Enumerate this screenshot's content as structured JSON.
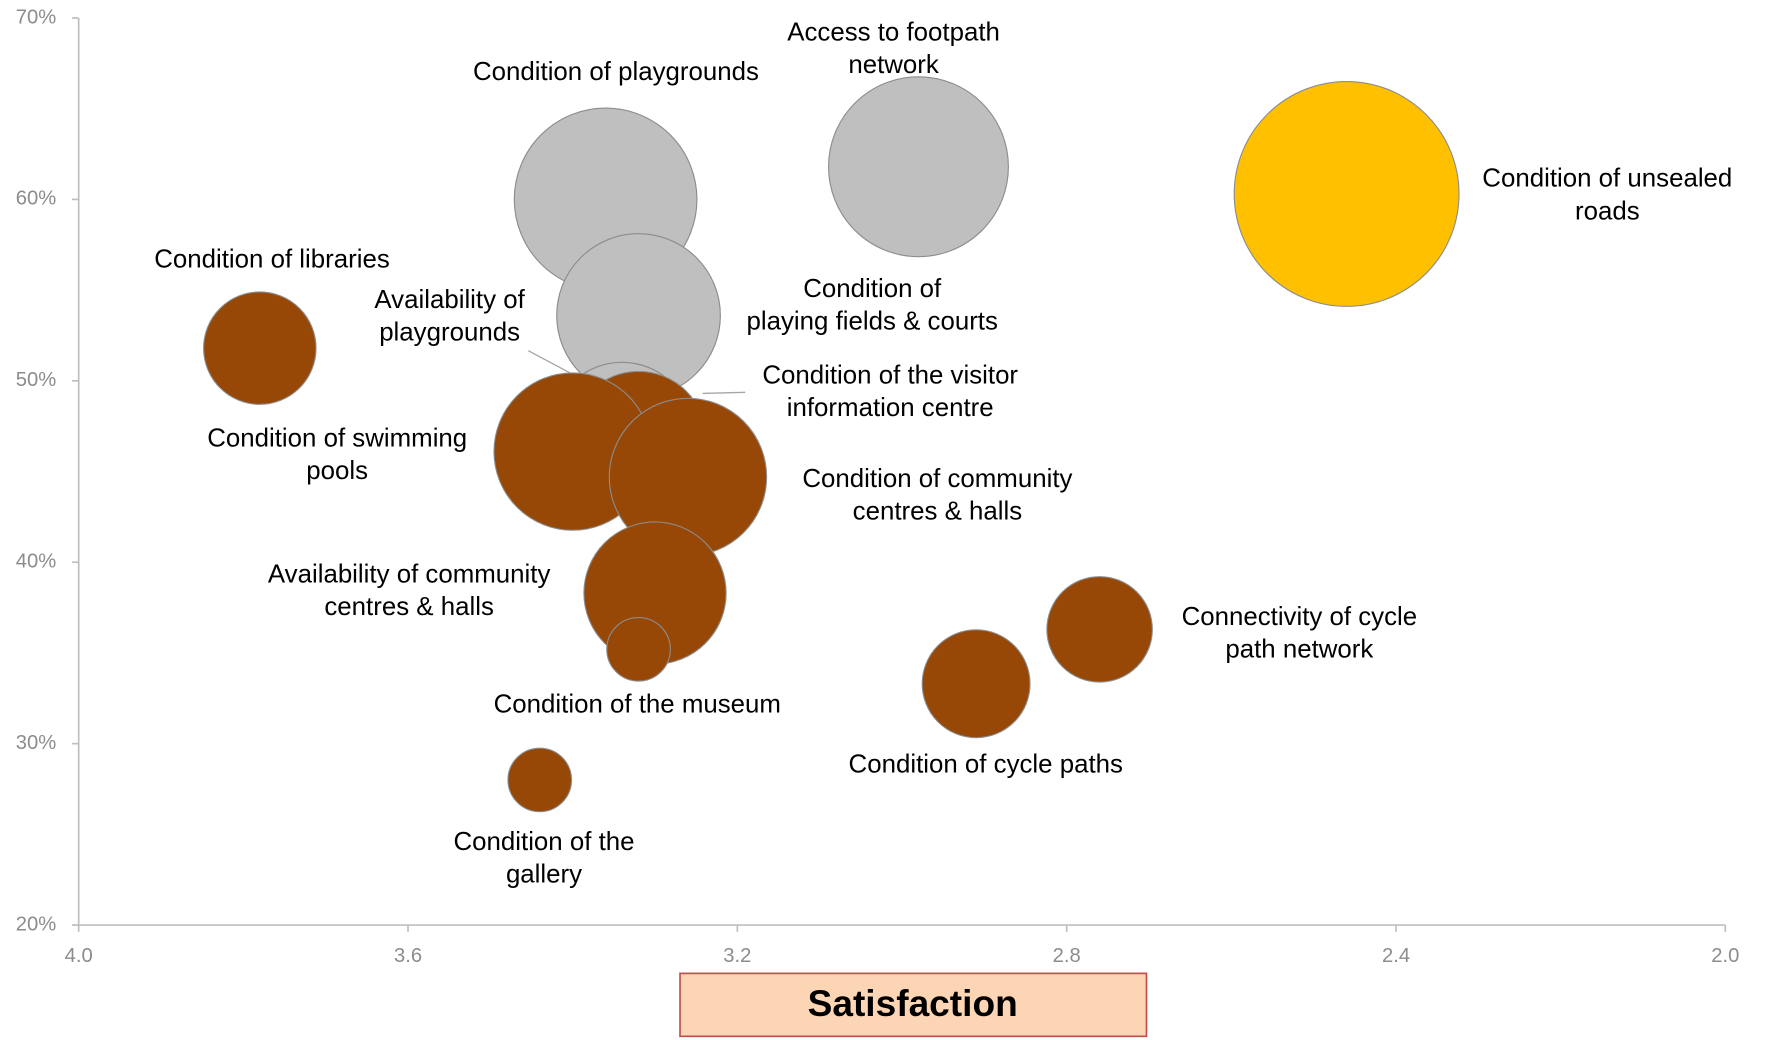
{
  "chart_data": {
    "type": "bubble",
    "xlabel": "Satisfaction",
    "xlim": [
      4,
      2
    ],
    "xticks": [
      {
        "value": 4,
        "label": "4.0"
      },
      3.6,
      3.2,
      2.8,
      2.4,
      {
        "value": 2,
        "label": "2.0"
      }
    ],
    "ylim": [
      20,
      70
    ],
    "yticks": [
      {
        "value": 20,
        "label": "20%"
      },
      {
        "value": 30,
        "label": "30%"
      },
      {
        "value": 40,
        "label": "40%"
      },
      {
        "value": 50,
        "label": "50%"
      },
      {
        "value": 60,
        "label": "60%"
      },
      {
        "value": 70,
        "label": "70%"
      }
    ],
    "points": [
      {
        "label": [
          "Condition of playgrounds"
        ],
        "x": 3.36,
        "y": 60.0,
        "size": 66,
        "color": "#bfbfbf"
      },
      {
        "label": [
          "Access to footpath",
          "network"
        ],
        "x": 2.98,
        "y": 61.8,
        "size": 64,
        "color": "#bfbfbf"
      },
      {
        "label": [
          "Condition of unsealed",
          "roads"
        ],
        "x": 2.46,
        "y": 60.3,
        "size": 100,
        "color": "#ffc000"
      },
      {
        "label": [
          "Condition of",
          "playing fields & courts"
        ],
        "x": 3.32,
        "y": 53.6,
        "size": 53,
        "color": "#bfbfbf"
      },
      {
        "label": [
          "Condition of libraries"
        ],
        "x": 3.78,
        "y": 51.8,
        "size": 25,
        "color": "#974706"
      },
      {
        "label": [
          "Availability of",
          "playgrounds"
        ],
        "x": 3.34,
        "y": 47.1,
        "size": 40,
        "color": "#bfbfbf"
      },
      {
        "label": [
          "Condition of the visitor",
          "information centre"
        ],
        "x": 3.32,
        "y": 46.8,
        "size": 36,
        "color": "#974706"
      },
      {
        "label": [
          "Condition of swimming",
          "pools"
        ],
        "x": 3.4,
        "y": 46.1,
        "size": 49,
        "color": "#974706"
      },
      {
        "label": [
          "Condition of community",
          "centres & halls"
        ],
        "x": 3.26,
        "y": 44.7,
        "size": 49,
        "color": "#974706"
      },
      {
        "label": [
          "Availability of community",
          "centres & halls"
        ],
        "x": 3.3,
        "y": 38.3,
        "size": 40,
        "color": "#974706"
      },
      {
        "label": [
          "Condition of the museum"
        ],
        "x": 3.32,
        "y": 35.2,
        "size": 8,
        "color": "#974706"
      },
      {
        "label": [
          "Condition of the",
          "gallery"
        ],
        "x": 3.44,
        "y": 28.0,
        "size": 8,
        "color": "#974706"
      },
      {
        "label": [
          "Condition of cycle paths"
        ],
        "x": 2.91,
        "y": 33.3,
        "size": 23,
        "color": "#974706"
      },
      {
        "label": [
          "Connectivity of cycle",
          "path network"
        ],
        "x": 2.76,
        "y": 36.3,
        "size": 22,
        "color": "#974706"
      }
    ]
  }
}
